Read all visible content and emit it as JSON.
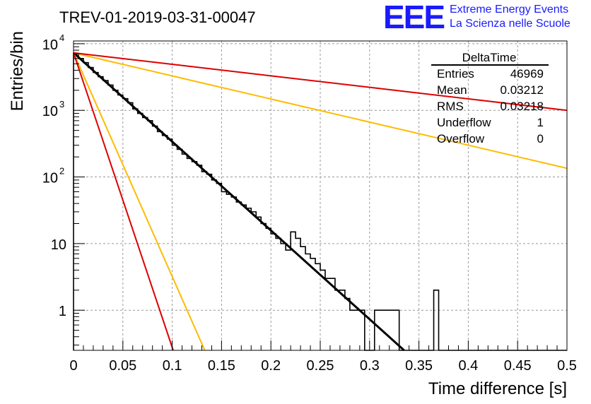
{
  "title": "TREV-01-2019-03-31-00047",
  "logo": {
    "mark": "EEE",
    "line1": "Extreme Energy Events",
    "line2": "La Scienza nelle Scuole",
    "color": "#1a1aff"
  },
  "stats": {
    "name": "DeltaTime",
    "rows": [
      {
        "label": "Entries",
        "value": "46969"
      },
      {
        "label": "Mean",
        "value": "0.03212"
      },
      {
        "label": "RMS",
        "value": "0.03218"
      },
      {
        "label": "Underflow",
        "value": "1"
      },
      {
        "label": "Overflow",
        "value": "0"
      }
    ]
  },
  "chart_data": {
    "type": "line",
    "xlabel": "Time difference [s]",
    "ylabel": "Entries/bin",
    "xlim": [
      0,
      0.5
    ],
    "ylim": [
      0.25,
      11000
    ],
    "yscale": "log",
    "grid": true,
    "legend": "top-right",
    "xticks": [
      "0",
      "0.05",
      "0.1",
      "0.15",
      "0.2",
      "0.25",
      "0.3",
      "0.35",
      "0.4",
      "0.45",
      "0.5"
    ],
    "yticks": [
      {
        "value": 1,
        "base": "1",
        "exp": ""
      },
      {
        "value": 10,
        "base": "10",
        "exp": ""
      },
      {
        "value": 100,
        "base": "10",
        "exp": "2"
      },
      {
        "value": 1000,
        "base": "10",
        "exp": "3"
      },
      {
        "value": 10000,
        "base": "10",
        "exp": "4"
      }
    ],
    "histogram": {
      "bin_width": 0.005,
      "color": "#000000",
      "counts": [
        7100,
        6000,
        5200,
        4400,
        3700,
        3200,
        2800,
        2400,
        2000,
        1700,
        1500,
        1300,
        1050,
        900,
        780,
        700,
        580,
        480,
        420,
        370,
        300,
        260,
        220,
        190,
        170,
        150,
        120,
        110,
        90,
        80,
        60,
        55,
        50,
        42,
        38,
        34,
        30,
        25,
        20,
        17,
        14,
        12,
        10,
        8,
        15,
        12,
        9,
        7,
        6,
        5,
        4,
        3,
        3,
        2,
        2,
        1.5,
        1,
        1,
        1,
        0,
        0,
        1,
        1,
        1,
        1,
        1,
        0,
        0,
        0,
        0,
        0,
        0,
        0,
        2,
        0,
        0,
        0,
        0,
        0,
        0,
        0,
        0,
        0,
        0,
        0,
        0,
        0,
        0,
        0,
        0,
        0,
        0,
        0,
        0,
        0,
        0,
        0,
        0,
        0,
        0
      ]
    },
    "series": [
      {
        "color": "#000000",
        "width": 3,
        "points": [
          [
            0,
            7300
          ],
          [
            0.335,
            0.24
          ]
        ]
      },
      {
        "color": "#ffbb00",
        "width": 2,
        "points": [
          [
            0,
            7300
          ],
          [
            0.133,
            0.24
          ]
        ]
      },
      {
        "color": "#dd0000",
        "width": 2,
        "points": [
          [
            0,
            7300
          ],
          [
            0.101,
            0.24
          ]
        ]
      },
      {
        "color": "#ffbb00",
        "width": 2,
        "points": [
          [
            0,
            7300
          ],
          [
            0.5,
            135
          ]
        ]
      },
      {
        "color": "#dd0000",
        "width": 2,
        "points": [
          [
            0,
            7300
          ],
          [
            0.5,
            1000
          ]
        ]
      }
    ]
  }
}
